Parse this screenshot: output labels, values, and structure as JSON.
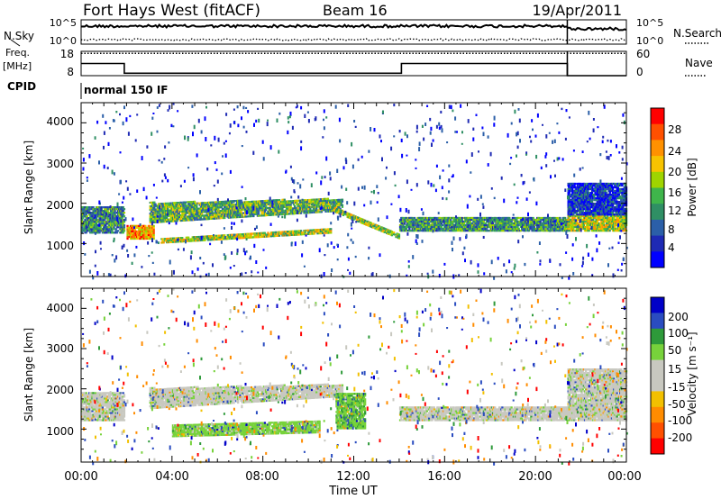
{
  "header": {
    "station": "Fort Hays West (fitACF)",
    "beam": "Beam 16",
    "date": "19/Apr/2011"
  },
  "top_panels": {
    "nsky_label": "N.Sky",
    "nsky_ticks": [
      "10^5",
      "10^0"
    ],
    "nsearch_label": "N.Search",
    "nsearch_ticks": [
      "10^5",
      "10^0"
    ],
    "freq_label_1": "Freq.",
    "freq_label_2": "[MHz]",
    "freq_ticks": [
      "18",
      "8"
    ],
    "nave_label": "Nave",
    "nave_ticks": [
      "60",
      "0"
    ],
    "cpid_label": "CPID",
    "cpid_value": "normal 150 IF",
    "freq_trace": [
      [
        0,
        13
      ],
      [
        1.9,
        13
      ],
      [
        1.9,
        9
      ],
      [
        14.1,
        9
      ],
      [
        14.1,
        13
      ],
      [
        21.4,
        13
      ],
      [
        21.4,
        8
      ],
      [
        24,
        8
      ]
    ],
    "nave_level": 55
  },
  "power_panel": {
    "ylabel": "Slant Range [km]",
    "yticks": [
      "4000",
      "3000",
      "2000",
      "1000"
    ],
    "colorbar_label": "Power [dB]",
    "colorbar_ticks": [
      "28",
      "24",
      "20",
      "16",
      "12",
      "8",
      "4"
    ],
    "colorbar_colors": [
      "#ff0000",
      "#ff5000",
      "#ff9100",
      "#f7c300",
      "#9fd400",
      "#3fb54b",
      "#2f8f64",
      "#2b5fa8",
      "#1e2ab4",
      "#0000ff"
    ]
  },
  "velocity_panel": {
    "ylabel": "Slant Range [km]",
    "yticks": [
      "4000",
      "3000",
      "2000",
      "1000"
    ],
    "colorbar_label": "Velocity [m s⁻¹]",
    "colorbar_ticks": [
      "200",
      "100",
      "50",
      "15",
      "-15",
      "-50",
      "-100",
      "-200"
    ],
    "colorbar_colors": [
      "#0000c8",
      "#2a4cc0",
      "#2e9a3a",
      "#77d23b",
      "#c8c8c0",
      "#c8c8c0",
      "#f2c000",
      "#ff8c00",
      "#ff5000",
      "#ff0000"
    ]
  },
  "xaxis": {
    "ticks": [
      "00:00",
      "04:00",
      "08:00",
      "12:00",
      "16:00",
      "20:00",
      "00:00"
    ],
    "label": "Time UT"
  },
  "chart_data": [
    {
      "type": "line",
      "title": "Fort Hays West (fitACF)",
      "xlabel": "",
      "ylabel": "Freq. [MHz]",
      "x": [
        0,
        1.9,
        1.9,
        14.1,
        14.1,
        21.4,
        21.4,
        24
      ],
      "series": [
        {
          "name": "Freq.",
          "values": [
            13,
            13,
            9,
            9,
            13,
            13,
            8,
            8
          ]
        }
      ],
      "xlim": [
        0,
        24
      ],
      "ylim": [
        8,
        18
      ]
    },
    {
      "type": "heatmap",
      "title": "",
      "xlabel": "Time UT",
      "ylabel": "Slant Range [km]",
      "colorbar": "Power [dB]",
      "xlim": [
        0,
        24
      ],
      "ylim": [
        180,
        4500
      ],
      "clim": [
        0,
        30
      ],
      "features": [
        {
          "x": [
            0,
            1.9
          ],
          "range": [
            1250,
            1900
          ],
          "value": 10
        },
        {
          "x": [
            2,
            3.2
          ],
          "range": [
            1100,
            1450
          ],
          "value": 22
        },
        {
          "x": [
            3,
            11.5
          ],
          "range_start": [
            1500,
            2000
          ],
          "range_end": [
            1800,
            2100
          ],
          "value": 13
        },
        {
          "x": [
            3.5,
            11
          ],
          "range_start": [
            1000,
            1100
          ],
          "range_end": [
            1250,
            1350
          ],
          "value": 17
        },
        {
          "x": [
            11,
            14
          ],
          "range_start": [
            1800,
            1900
          ],
          "range_end": [
            1100,
            1200
          ],
          "value": 16
        },
        {
          "x": [
            14,
            21.4
          ],
          "range": [
            1300,
            1650
          ],
          "value": 11
        },
        {
          "x": [
            21.4,
            24
          ],
          "range": [
            1300,
            1700
          ],
          "value": 17
        },
        {
          "x": [
            21.4,
            24
          ],
          "range": [
            1700,
            2500
          ],
          "value": 5
        }
      ]
    },
    {
      "type": "heatmap",
      "title": "",
      "xlabel": "Time UT",
      "ylabel": "Slant Range [km]",
      "colorbar": "Velocity [m s-1]",
      "xlim": [
        0,
        24
      ],
      "ylim": [
        180,
        4500
      ],
      "clim": [
        -200,
        200
      ],
      "features": [
        {
          "x": [
            0,
            1.9
          ],
          "range": [
            1200,
            1900
          ],
          "value": 0
        },
        {
          "x": [
            3,
            11.5
          ],
          "range_start": [
            1500,
            2000
          ],
          "range_end": [
            1800,
            2100
          ],
          "value": 0
        },
        {
          "x": [
            4,
            10.5
          ],
          "range_start": [
            800,
            1100
          ],
          "range_end": [
            900,
            1200
          ],
          "value": 30
        },
        {
          "x": [
            11.2,
            12.5
          ],
          "range": [
            1000,
            1900
          ],
          "value": 40
        },
        {
          "x": [
            14,
            21.4
          ],
          "range": [
            1200,
            1550
          ],
          "value": 0
        },
        {
          "x": [
            21.4,
            24
          ],
          "range": [
            1200,
            2500
          ],
          "value": 0
        }
      ]
    }
  ]
}
